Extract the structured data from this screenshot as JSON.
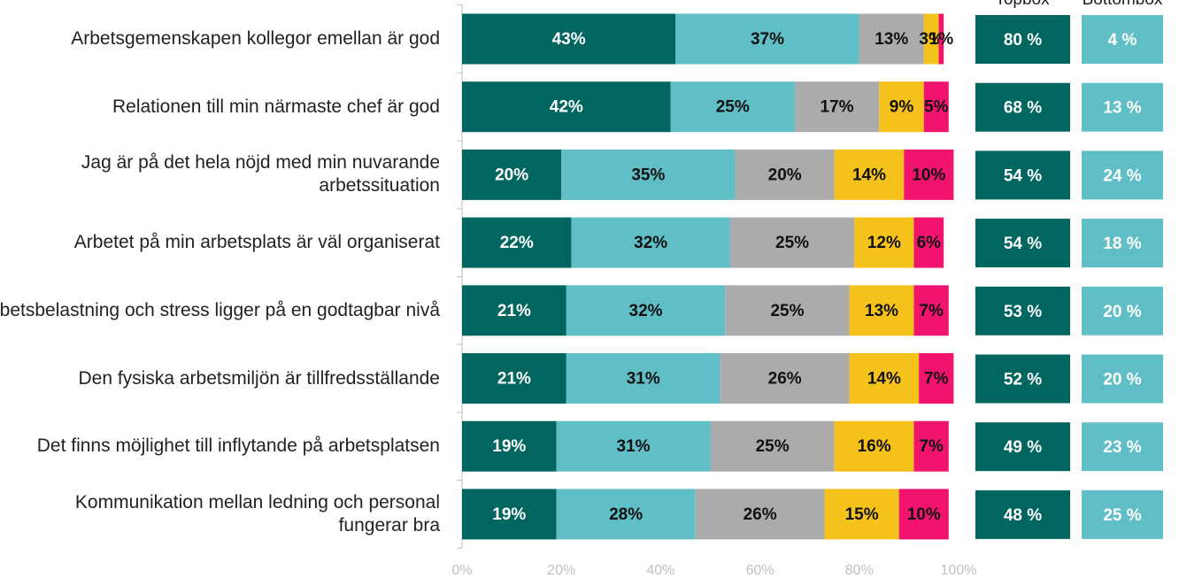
{
  "chart_data": {
    "type": "stacked-barh",
    "categories": [
      "Arbetsgemenskapen kollegor emellan är god",
      "Relationen till min närmaste chef är god",
      "Jag är på det hela nöjd med min nuvarande arbetssituation",
      "Arbetet på min arbetsplats är väl organiserat",
      "Arbetsbelastning och stress ligger på en godtagbar nivå",
      "Den fysiska arbetsmiljön är tillfredsställande",
      "Det finns möjlighet till inflytande på arbetsplatsen",
      "Kommunikation mellan ledning och personal fungerar bra"
    ],
    "series": [
      {
        "color": "#00665f",
        "values": [
          43,
          42,
          20,
          22,
          21,
          21,
          19,
          19
        ],
        "value_labels": [
          "43%",
          "42%",
          "20%",
          "22%",
          "21%",
          "21%",
          "19%",
          "19%"
        ]
      },
      {
        "color": "#5fbec6",
        "values": [
          37,
          25,
          35,
          32,
          32,
          31,
          31,
          28
        ],
        "value_labels": [
          "37%",
          "25%",
          "35%",
          "32%",
          "32%",
          "31%",
          "31%",
          "28%"
        ]
      },
      {
        "color": "#ababab",
        "values": [
          13,
          17,
          20,
          25,
          25,
          26,
          25,
          26
        ],
        "value_labels": [
          "13%",
          "17%",
          "20%",
          "25%",
          "25%",
          "26%",
          "25%",
          "26%"
        ]
      },
      {
        "color": "#f5c21b",
        "values": [
          3,
          9,
          14,
          12,
          13,
          14,
          16,
          15
        ],
        "value_labels": [
          "3%",
          "9%",
          "14%",
          "12%",
          "13%",
          "14%",
          "16%",
          "15%"
        ]
      },
      {
        "color": "#f0146e",
        "values": [
          1,
          5,
          10,
          6,
          7,
          7,
          7,
          10
        ],
        "value_labels": [
          "1%",
          "5%",
          "10%",
          "6%",
          "7%",
          "7%",
          "7%",
          "10%"
        ]
      }
    ],
    "xlim": [
      0,
      100
    ],
    "xticks": [
      {
        "value": 0,
        "label": "0%"
      },
      {
        "value": 20,
        "label": "20%"
      },
      {
        "value": 40,
        "label": "40%"
      },
      {
        "value": 60,
        "label": "60%"
      },
      {
        "value": 80,
        "label": "80%"
      },
      {
        "value": 100,
        "label": "100%"
      }
    ],
    "topbox": {
      "header": "Topbox",
      "color": "#00665f",
      "values": [
        80,
        68,
        54,
        54,
        53,
        52,
        49,
        48
      ],
      "value_labels": [
        "80 %",
        "68 %",
        "54 %",
        "54 %",
        "53 %",
        "52 %",
        "49 %",
        "48 %"
      ]
    },
    "bottombox": {
      "header": "Bottombox",
      "color": "#5fbec6",
      "values": [
        4,
        13,
        24,
        18,
        20,
        20,
        23,
        25
      ],
      "value_labels": [
        "4 %",
        "13 %",
        "24 %",
        "18 %",
        "20 %",
        "20 %",
        "23 %",
        "25 %"
      ]
    }
  }
}
